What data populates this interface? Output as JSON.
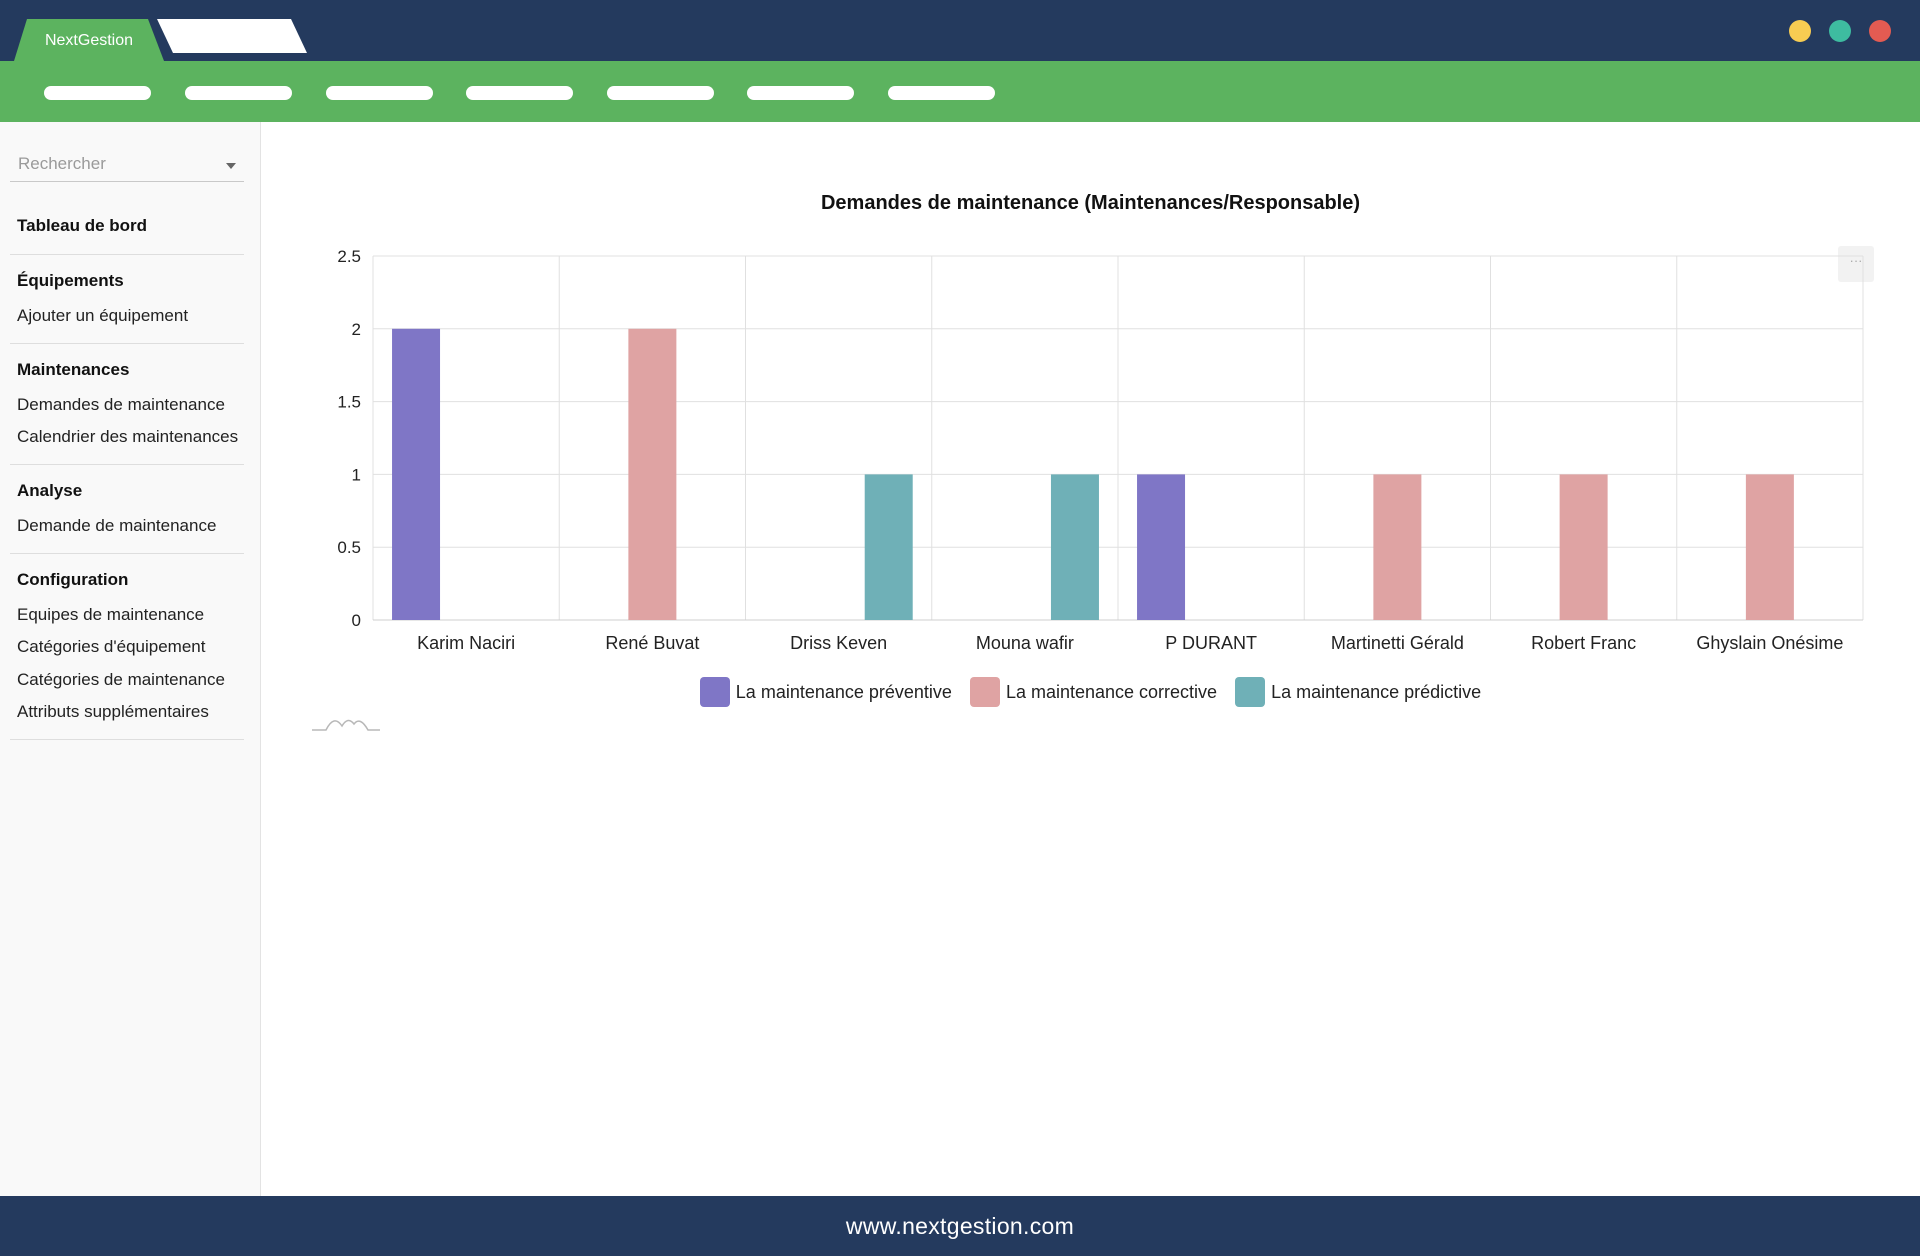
{
  "window": {
    "tab_active_label": "NextGestion",
    "controls": [
      "minimize-dot",
      "maximize-dot",
      "close-dot"
    ]
  },
  "sidebar": {
    "search_placeholder": "Rechercher",
    "dashboard": "Tableau de bord",
    "sections": [
      {
        "title": "Équipements",
        "items": [
          "Ajouter un équipement"
        ]
      },
      {
        "title": "Maintenances",
        "items": [
          "Demandes de maintenance",
          "Calendrier des maintenances"
        ]
      },
      {
        "title": "Analyse",
        "items": [
          "Demande de maintenance"
        ]
      },
      {
        "title": "Configuration",
        "items": [
          "Equipes de maintenance",
          "Catégories d'équipement",
          "Catégories de maintenance",
          "Attributs supplémentaires"
        ]
      }
    ]
  },
  "chart_menu_icon": "···",
  "chart_data": {
    "type": "bar",
    "title": "Demandes de maintenance (Maintenances/Responsable)",
    "categories": [
      "Karim Naciri",
      "René Buvat",
      "Driss Keven",
      "Mouna wafir",
      "P DURANT",
      "Martinetti Gérald",
      "Robert Franc",
      "Ghyslain Onésime"
    ],
    "series": [
      {
        "name": "La maintenance préventive",
        "color": "#7f76c6",
        "values": [
          2,
          0,
          0,
          0,
          1,
          0,
          0,
          0
        ]
      },
      {
        "name": "La maintenance corrective",
        "color": "#dfa3a3",
        "values": [
          0,
          2,
          0,
          0,
          0,
          1,
          1,
          1
        ]
      },
      {
        "name": "La maintenance prédictive",
        "color": "#6fb0b7",
        "values": [
          0,
          0,
          1,
          1,
          0,
          0,
          0,
          0
        ]
      }
    ],
    "yticks": [
      "0",
      "0.5",
      "1",
      "1.5",
      "2",
      "2.5"
    ],
    "ylim": [
      0,
      2.5
    ],
    "xlabel": "",
    "ylabel": "",
    "legend": "bottom"
  },
  "footer": {
    "url": "www.nextgestion.com"
  }
}
